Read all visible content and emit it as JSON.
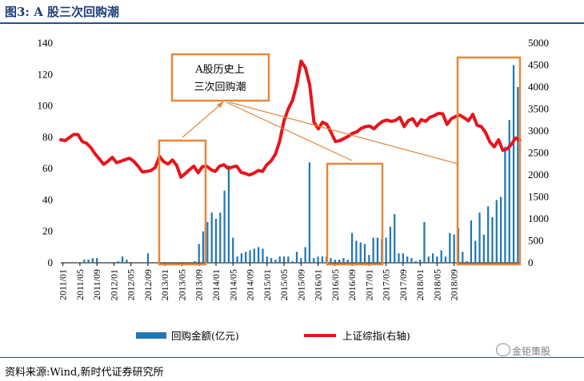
{
  "header": {
    "title": "图3:   A 股三次回购潮"
  },
  "footer": {
    "source": "资料来源:Wind,新时代证券研究所",
    "watermark": "金钜策股"
  },
  "annotation": {
    "line1": "A股历史上",
    "line2": "三次回购潮"
  },
  "colors": {
    "bar": "#1f77b4",
    "line": "#e8141b",
    "box": "#e6873a",
    "title": "#1f3d7a"
  },
  "chart_data": {
    "type": "bar",
    "grid": false,
    "legend_position": "bottom",
    "x_tick_labels": [
      "2011/01",
      "2011/05",
      "2011/09",
      "2012/01",
      "2012/05",
      "2012/09",
      "2013/01",
      "2013/05",
      "2013/09",
      "2014/01",
      "2014/05",
      "2014/09",
      "2015/01",
      "2015/05",
      "2015/09",
      "2016/01",
      "2016/05",
      "2016/09",
      "2017/01",
      "2017/05",
      "2017/09",
      "2018/01",
      "2018/05",
      "2018/09"
    ],
    "y_left": {
      "min": 0,
      "max": 140,
      "ticks": [
        0,
        20,
        40,
        60,
        80,
        100,
        120,
        140
      ]
    },
    "y_right": {
      "min": 0,
      "max": 5000,
      "ticks": [
        0,
        500,
        1000,
        1500,
        2000,
        2500,
        3000,
        3500,
        4000,
        4500,
        5000
      ]
    },
    "series": [
      {
        "name": "回购金额(亿元)",
        "type": "bar",
        "axis": "left",
        "values": [
          0,
          0,
          0,
          0,
          0,
          2,
          2,
          3,
          3,
          0,
          0,
          0,
          0,
          1,
          4,
          2,
          0,
          0,
          0,
          0,
          6,
          0,
          0,
          0,
          0,
          0,
          0,
          0,
          0,
          0,
          0,
          1,
          12,
          20,
          26,
          32,
          28,
          32,
          46,
          62,
          16,
          4,
          6,
          7,
          8,
          9,
          10,
          9,
          4,
          3,
          2,
          4,
          4,
          4,
          1,
          7,
          3,
          10,
          64,
          3,
          4,
          4,
          4,
          3,
          2,
          2,
          3,
          2,
          19,
          14,
          13,
          12,
          5,
          16,
          16,
          15,
          16,
          23,
          31,
          6,
          6,
          4,
          3,
          1,
          2,
          26,
          4,
          6,
          4,
          8,
          4,
          19,
          18,
          22,
          7,
          1,
          27,
          14,
          32,
          18,
          36,
          29,
          40,
          42,
          74,
          91,
          126,
          112
        ]
      },
      {
        "name": "上证综指(右轴)",
        "type": "line",
        "axis": "right",
        "values": [
          2800,
          2780,
          2850,
          2920,
          2920,
          2760,
          2720,
          2620,
          2480,
          2360,
          2240,
          2310,
          2400,
          2280,
          2310,
          2350,
          2380,
          2310,
          2200,
          2070,
          2080,
          2100,
          2170,
          2420,
          2300,
          2250,
          2340,
          2220,
          1950,
          2030,
          2120,
          2200,
          2050,
          2190,
          2200,
          2120,
          2080,
          2200,
          2230,
          2150,
          2180,
          2200,
          2060,
          2030,
          2000,
          2040,
          2100,
          2080,
          2230,
          2320,
          2470,
          2770,
          3230,
          3500,
          3700,
          4060,
          4590,
          4440,
          4050,
          3200,
          3050,
          3200,
          3150,
          2960,
          2760,
          2780,
          2830,
          2880,
          2950,
          2980,
          3060,
          3100,
          3110,
          3050,
          3150,
          3220,
          3250,
          3220,
          3240,
          3310,
          3100,
          3240,
          3280,
          3120,
          3260,
          3220,
          3310,
          3350,
          3400,
          3390,
          3150,
          3280,
          3330,
          3360,
          3300,
          3230,
          3380,
          3130,
          3100,
          2960,
          2750,
          2640,
          2800,
          2560,
          2590,
          2700,
          2840,
          2790
        ]
      }
    ]
  }
}
